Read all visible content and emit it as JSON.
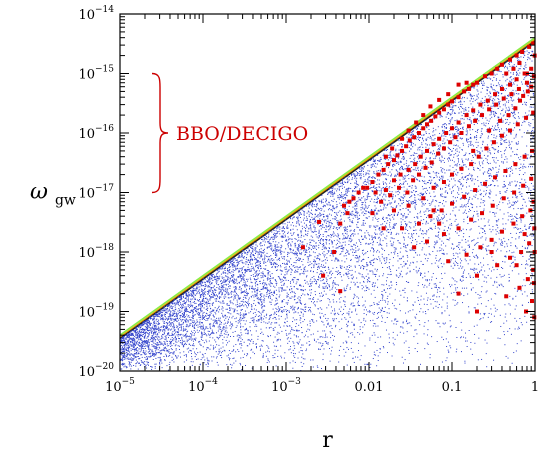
{
  "chart_data": {
    "type": "scatter",
    "title": "",
    "xlabel": "r",
    "ylabel": {
      "symbol": "ω",
      "subscript": "gw"
    },
    "xscale": "log",
    "yscale": "log",
    "xlim": [
      1e-05,
      1
    ],
    "ylim": [
      1e-20,
      1e-14
    ],
    "x_ticks": [
      {
        "value": 1e-05,
        "base": "10",
        "exp": "−5"
      },
      {
        "value": 0.0001,
        "base": "10",
        "exp": "−4"
      },
      {
        "value": 0.001,
        "base": "10",
        "exp": "−3"
      },
      {
        "value": 0.01,
        "text": "0.01"
      },
      {
        "value": 0.1,
        "text": "0.1"
      },
      {
        "value": 1,
        "text": "1"
      }
    ],
    "y_ticks": [
      {
        "value": 1e-20,
        "base": "10",
        "exp": "−20"
      },
      {
        "value": 1e-19,
        "base": "10",
        "exp": "−19"
      },
      {
        "value": 1e-18,
        "base": "10",
        "exp": "−18"
      },
      {
        "value": 1e-17,
        "base": "10",
        "exp": "−17"
      },
      {
        "value": 1e-16,
        "base": "10",
        "exp": "−16"
      },
      {
        "value": 1e-15,
        "base": "10",
        "exp": "−15"
      },
      {
        "value": 1e-14,
        "base": "10",
        "exp": "−14"
      }
    ],
    "annotation": {
      "text": "BBO/DECIGO",
      "color": "#cc0000",
      "y_range": [
        1e-17,
        1e-15
      ]
    },
    "reference_lines": [
      {
        "color": "#88ee44",
        "points": [
          [
            1e-05,
            4e-20
          ],
          [
            1,
            4e-15
          ]
        ]
      },
      {
        "color": "#e8a000",
        "points": [
          [
            1e-05,
            3.7e-20
          ],
          [
            1,
            3.7e-15
          ]
        ]
      },
      {
        "color": "#222222",
        "points": [
          [
            1e-05,
            3.5e-20
          ],
          [
            1,
            3.5e-15
          ]
        ]
      }
    ],
    "series": [
      {
        "color": "#3344cc",
        "marker": "dot",
        "description_bound": "points below the upper line",
        "generator": {
          "count": 9000,
          "upper_factor": 3.5e-15,
          "seed": 7
        }
      },
      {
        "color": "#dd0000",
        "marker": "square",
        "values": [
          [
            0.0095,
            1.2e-17
          ],
          [
            0.011,
            1.5e-17
          ],
          [
            0.013,
            2e-17
          ],
          [
            0.015,
            2.4e-17
          ],
          [
            0.017,
            3e-17
          ],
          [
            0.02,
            3.5e-17
          ],
          [
            0.022,
            4.2e-17
          ],
          [
            0.025,
            5e-17
          ],
          [
            0.028,
            6e-17
          ],
          [
            0.031,
            7.5e-17
          ],
          [
            0.035,
            8.5e-17
          ],
          [
            0.04,
            1e-16
          ],
          [
            0.045,
            1.2e-16
          ],
          [
            0.05,
            1.4e-16
          ],
          [
            0.056,
            1.6e-16
          ],
          [
            0.063,
            1.9e-16
          ],
          [
            0.07,
            2.2e-16
          ],
          [
            0.08,
            2.5e-16
          ],
          [
            0.09,
            3e-16
          ],
          [
            0.1,
            3.4e-16
          ],
          [
            0.12,
            4e-16
          ],
          [
            0.14,
            5e-16
          ],
          [
            0.16,
            5.5e-16
          ],
          [
            0.18,
            6.5e-16
          ],
          [
            0.2,
            7e-16
          ],
          [
            0.25,
            9e-16
          ],
          [
            0.3,
            1e-15
          ],
          [
            0.35,
            1.2e-15
          ],
          [
            0.4,
            1.4e-15
          ],
          [
            0.5,
            1.7e-15
          ],
          [
            0.6,
            2e-15
          ],
          [
            0.7,
            2.3e-15
          ],
          [
            0.85,
            2.8e-15
          ],
          [
            0.95,
            3.2e-15
          ],
          [
            0.012,
            1e-17
          ],
          [
            0.016,
            1.1e-17
          ],
          [
            0.02,
            1.6e-17
          ],
          [
            0.024,
            2e-17
          ],
          [
            0.03,
            2.4e-17
          ],
          [
            0.036,
            3e-17
          ],
          [
            0.042,
            4e-17
          ],
          [
            0.05,
            5e-17
          ],
          [
            0.06,
            6.5e-17
          ],
          [
            0.07,
            8e-17
          ],
          [
            0.085,
            1e-16
          ],
          [
            0.1,
            1.2e-16
          ],
          [
            0.12,
            1.5e-16
          ],
          [
            0.15,
            2e-16
          ],
          [
            0.18,
            2.4e-16
          ],
          [
            0.22,
            3e-16
          ],
          [
            0.27,
            3.5e-16
          ],
          [
            0.33,
            4.5e-16
          ],
          [
            0.4,
            5.5e-16
          ],
          [
            0.5,
            6.5e-16
          ],
          [
            0.6,
            8e-16
          ],
          [
            0.75,
            1e-15
          ],
          [
            0.9,
            1.2e-15
          ],
          [
            0.014,
            7e-18
          ],
          [
            0.018,
            9e-18
          ],
          [
            0.023,
            1.2e-17
          ],
          [
            0.029,
            1e-17
          ],
          [
            0.034,
            1.6e-17
          ],
          [
            0.04,
            2e-17
          ],
          [
            0.048,
            2.6e-17
          ],
          [
            0.057,
            3.2e-17
          ],
          [
            0.068,
            4.5e-17
          ],
          [
            0.08,
            5.5e-17
          ],
          [
            0.095,
            7e-17
          ],
          [
            0.11,
            8.5e-17
          ],
          [
            0.13,
            1e-16
          ],
          [
            0.16,
            1.3e-16
          ],
          [
            0.19,
            1.6e-16
          ],
          [
            0.23,
            2e-16
          ],
          [
            0.28,
            2.5e-16
          ],
          [
            0.34,
            3e-16
          ],
          [
            0.42,
            3.8e-16
          ],
          [
            0.52,
            4.5e-16
          ],
          [
            0.64,
            5.5e-16
          ],
          [
            0.8,
            7e-16
          ],
          [
            0.97,
            9e-16
          ],
          [
            0.0065,
            8e-18
          ],
          [
            0.0075,
            1e-17
          ],
          [
            0.0085,
            1.2e-17
          ],
          [
            0.005,
            6e-18
          ],
          [
            0.0058,
            7e-18
          ],
          [
            0.02,
            5e-18
          ],
          [
            0.03,
            6e-18
          ],
          [
            0.045,
            8e-18
          ],
          [
            0.06,
            1.2e-17
          ],
          [
            0.08,
            1.5e-17
          ],
          [
            0.1,
            2e-17
          ],
          [
            0.13,
            2.5e-17
          ],
          [
            0.17,
            3e-17
          ],
          [
            0.21,
            4e-17
          ],
          [
            0.26,
            5.5e-17
          ],
          [
            0.32,
            7e-17
          ],
          [
            0.4,
            9e-17
          ],
          [
            0.5,
            1.1e-16
          ],
          [
            0.62,
            1.4e-16
          ],
          [
            0.78,
            1.8e-16
          ],
          [
            0.95,
            2.2e-16
          ],
          [
            0.025,
            2.5e-18
          ],
          [
            0.04,
            3e-18
          ],
          [
            0.055,
            4e-18
          ],
          [
            0.075,
            5e-18
          ],
          [
            0.1,
            6.5e-18
          ],
          [
            0.14,
            8.5e-18
          ],
          [
            0.19,
            1.1e-17
          ],
          [
            0.25,
            1.4e-17
          ],
          [
            0.33,
            1.8e-17
          ],
          [
            0.44,
            2.3e-17
          ],
          [
            0.58,
            3e-17
          ],
          [
            0.75,
            4e-17
          ],
          [
            0.92,
            5e-17
          ],
          [
            0.05,
            1.5e-18
          ],
          [
            0.08,
            2e-18
          ],
          [
            0.12,
            2.5e-18
          ],
          [
            0.17,
            3.5e-18
          ],
          [
            0.23,
            4.5e-18
          ],
          [
            0.31,
            6e-18
          ],
          [
            0.42,
            8e-18
          ],
          [
            0.56,
            1e-17
          ],
          [
            0.72,
            1.3e-17
          ],
          [
            0.9,
            1.7e-17
          ],
          [
            0.09,
            7e-19
          ],
          [
            0.15,
            9e-19
          ],
          [
            0.22,
            1.2e-18
          ],
          [
            0.3,
            1.6e-18
          ],
          [
            0.4,
            2.2e-18
          ],
          [
            0.55,
            3e-18
          ],
          [
            0.7,
            4e-18
          ],
          [
            0.88,
            5e-18
          ],
          [
            0.2,
            4e-19
          ],
          [
            0.35,
            6e-19
          ],
          [
            0.5,
            8e-19
          ],
          [
            0.68,
            1e-18
          ],
          [
            0.85,
            1.4e-18
          ],
          [
            0.45,
            1.8e-19
          ],
          [
            0.65,
            2.5e-19
          ],
          [
            0.82,
            3.5e-19
          ],
          [
            0.95,
            5e-19
          ],
          [
            0.78,
            1e-19
          ],
          [
            0.92,
            1.5e-19
          ],
          [
            0.98,
            8e-20
          ],
          [
            0.97,
            3e-19
          ],
          [
            0.0025,
            3.2e-18
          ],
          [
            0.0045,
            3e-18
          ],
          [
            0.0055,
            4.5e-18
          ],
          [
            0.0038,
            1e-18
          ],
          [
            0.0016,
            1.2e-18
          ],
          [
            0.06,
            5e-18
          ],
          [
            0.07,
            3e-18
          ],
          [
            0.12,
            2e-19
          ],
          [
            0.2,
            1e-19
          ],
          [
            0.3,
            1e-18
          ],
          [
            0.6,
            6e-19
          ],
          [
            0.75,
            2e-18
          ],
          [
            0.99,
            1e-18
          ],
          [
            0.98,
            2.5e-18
          ],
          [
            0.96,
            7e-18
          ],
          [
            0.0045,
            2.2e-19
          ],
          [
            0.0028,
            4e-19
          ],
          [
            0.015,
            2.5e-18
          ],
          [
            0.011,
            4.5e-18
          ],
          [
            0.035,
            1.2e-18
          ],
          [
            0.18,
            5e-17
          ],
          [
            0.28,
            1.1e-16
          ],
          [
            0.38,
            1.6e-16
          ],
          [
            0.48,
            2e-16
          ],
          [
            0.58,
            2.6e-16
          ],
          [
            0.66,
            3.5e-16
          ],
          [
            0.72,
            4.2e-16
          ],
          [
            0.82,
            5e-16
          ],
          [
            0.9,
            6e-16
          ],
          [
            0.99,
            2e-15
          ],
          [
            0.45,
            1e-15
          ],
          [
            0.55,
            1.2e-15
          ],
          [
            0.65,
            1.5e-15
          ],
          [
            0.8,
            1e-15
          ],
          [
            0.15,
            7e-16
          ],
          [
            0.12,
            6.5e-16
          ],
          [
            0.09,
            4.5e-16
          ],
          [
            0.07,
            3.6e-16
          ],
          [
            0.055,
            2.8e-16
          ],
          [
            0.045,
            2e-16
          ],
          [
            0.037,
            1.5e-16
          ],
          [
            0.03,
            1.1e-16
          ],
          [
            0.025,
            8e-17
          ],
          [
            0.019,
            5.5e-17
          ],
          [
            0.016,
            4e-17
          ]
        ]
      }
    ]
  }
}
